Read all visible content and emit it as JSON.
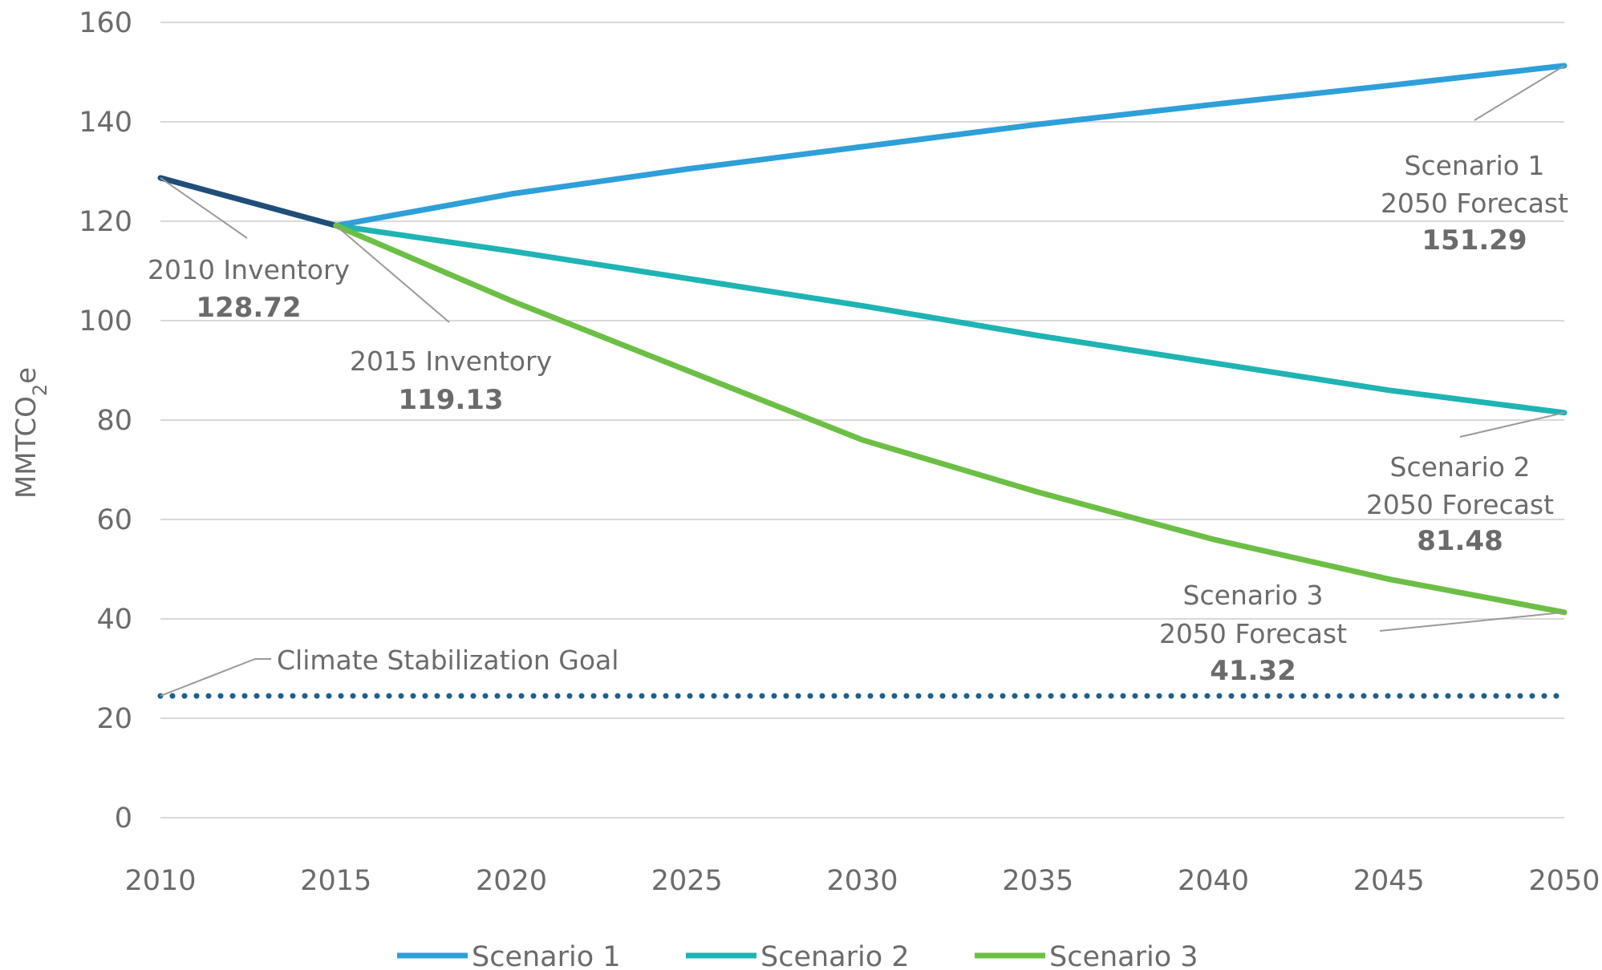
{
  "chart_data": {
    "type": "line",
    "title": "",
    "xlabel": "",
    "ylabel": "MMTCO2e",
    "ylabel_parts": {
      "pre": "MMTCO",
      "sub": "2",
      "post": "e"
    },
    "xlim": [
      2010,
      2050
    ],
    "ylim": [
      0,
      160
    ],
    "x_ticks": [
      2010,
      2015,
      2020,
      2025,
      2030,
      2035,
      2040,
      2045,
      2050
    ],
    "y_ticks": [
      0,
      20,
      40,
      60,
      80,
      100,
      120,
      140,
      160
    ],
    "grid": true,
    "legend_position": "bottom",
    "inventory": {
      "color": "#1f4e79",
      "points": [
        {
          "x": 2010,
          "y": 128.72
        },
        {
          "x": 2015,
          "y": 119.13
        }
      ]
    },
    "series": [
      {
        "name": "Scenario 1",
        "color": "#2e9fd9",
        "points": [
          {
            "x": 2015,
            "y": 119.13
          },
          {
            "x": 2020,
            "y": 125.5
          },
          {
            "x": 2025,
            "y": 130.5
          },
          {
            "x": 2030,
            "y": 135
          },
          {
            "x": 2035,
            "y": 139.5
          },
          {
            "x": 2040,
            "y": 143.5
          },
          {
            "x": 2045,
            "y": 147.3
          },
          {
            "x": 2050,
            "y": 151.29
          }
        ]
      },
      {
        "name": "Scenario 2",
        "color": "#1fb3b3",
        "points": [
          {
            "x": 2015,
            "y": 119.13
          },
          {
            "x": 2020,
            "y": 114
          },
          {
            "x": 2025,
            "y": 108.5
          },
          {
            "x": 2030,
            "y": 103
          },
          {
            "x": 2035,
            "y": 97
          },
          {
            "x": 2040,
            "y": 91.5
          },
          {
            "x": 2045,
            "y": 86
          },
          {
            "x": 2050,
            "y": 81.48
          }
        ]
      },
      {
        "name": "Scenario 3",
        "color": "#6cbf45",
        "points": [
          {
            "x": 2015,
            "y": 119.13
          },
          {
            "x": 2020,
            "y": 104
          },
          {
            "x": 2025,
            "y": 90
          },
          {
            "x": 2030,
            "y": 76
          },
          {
            "x": 2035,
            "y": 65.5
          },
          {
            "x": 2040,
            "y": 56
          },
          {
            "x": 2045,
            "y": 48
          },
          {
            "x": 2050,
            "y": 41.32
          }
        ]
      }
    ],
    "goal": {
      "label": "Climate Stabilization Goal",
      "value": 24.5,
      "color": "#1f5f8b",
      "style": "dotted"
    },
    "annotations": [
      {
        "line1": "2010 Inventory",
        "line2": "",
        "value": "128.72",
        "x": 2010,
        "y": 128.72
      },
      {
        "line1": "2015 Inventory",
        "line2": "",
        "value": "119.13",
        "x": 2015,
        "y": 119.13
      },
      {
        "line1": "Scenario 1",
        "line2": "2050 Forecast",
        "value": "151.29",
        "x": 2050,
        "y": 151.29
      },
      {
        "line1": "Scenario 2",
        "line2": "2050 Forecast",
        "value": "81.48",
        "x": 2050,
        "y": 81.48
      },
      {
        "line1": "Scenario 3",
        "line2": "2050 Forecast",
        "value": "41.32",
        "x": 2050,
        "y": 41.32
      }
    ]
  }
}
